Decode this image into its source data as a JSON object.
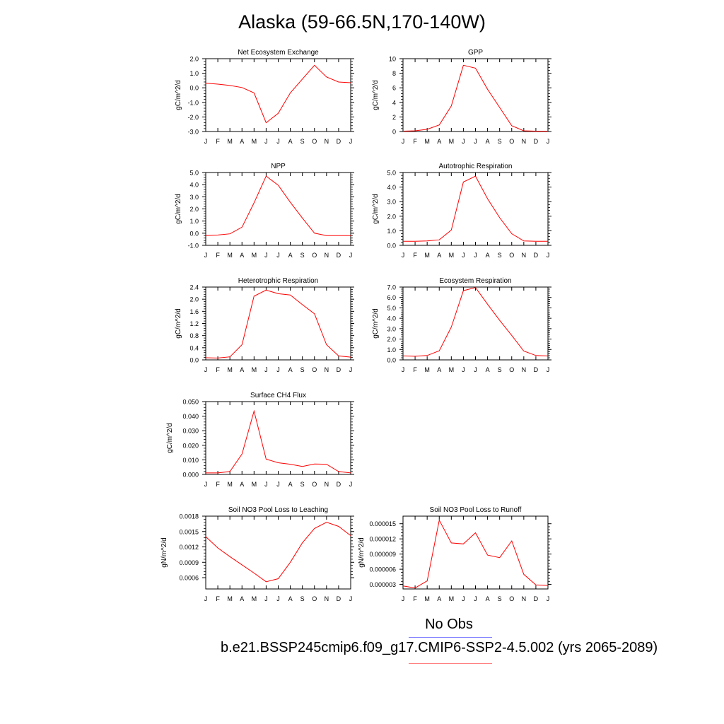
{
  "title": "Alaska (59-66.5N,170-140W)",
  "months": [
    "J",
    "F",
    "M",
    "A",
    "M",
    "J",
    "J",
    "A",
    "S",
    "O",
    "N",
    "D",
    "J"
  ],
  "legend": {
    "obs_label": "No Obs",
    "obs_color": "#8080ff",
    "case_label": "b.e21.BSSP245cmip6.f09_g17.CMIP6-SSP2-4.5.002 (yrs 2065-2089)",
    "case_color": "#ff8080"
  },
  "line_color": "#ff0000",
  "chart_data": [
    {
      "type": "line",
      "title": "Net Ecosystem Exchange",
      "ylabel": "gC/m^2/d",
      "ylim": [
        -3.0,
        2.0
      ],
      "yticks": [
        2.0,
        1.0,
        0.0,
        -1.0,
        -2.0,
        -3.0
      ],
      "ytick_labels": [
        "2.0",
        "1.0",
        "0.0",
        "-1.0",
        "-2.0",
        "-3.0"
      ],
      "values": [
        0.32,
        0.25,
        0.16,
        0.02,
        -0.35,
        -2.4,
        -1.75,
        -0.35,
        0.6,
        1.55,
        0.75,
        0.4,
        0.35
      ]
    },
    {
      "type": "line",
      "title": "GPP",
      "ylabel": "gC/m^2/d",
      "ylim": [
        0,
        10
      ],
      "yticks": [
        10,
        8,
        6,
        4,
        2,
        0
      ],
      "ytick_labels": [
        "10",
        "8",
        "6",
        "4",
        "2",
        "0"
      ],
      "values": [
        0.05,
        0.1,
        0.3,
        0.9,
        3.5,
        9.1,
        8.7,
        5.8,
        3.3,
        0.8,
        0.1,
        0.05,
        0.05
      ]
    },
    {
      "type": "line",
      "title": "NPP",
      "ylabel": "gC/m^2/d",
      "ylim": [
        -1.0,
        5.0
      ],
      "yticks": [
        5.0,
        4.0,
        3.0,
        2.0,
        1.0,
        0.0,
        -1.0
      ],
      "ytick_labels": [
        "5.0",
        "4.0",
        "3.0",
        "2.0",
        "1.0",
        "0.0",
        "-1.0"
      ],
      "values": [
        -0.2,
        -0.15,
        -0.05,
        0.5,
        2.5,
        4.7,
        3.95,
        2.55,
        1.25,
        0.0,
        -0.2,
        -0.2,
        -0.2
      ]
    },
    {
      "type": "line",
      "title": "Autotrophic Respiration",
      "ylabel": "gC/m^2/d",
      "ylim": [
        0,
        5.0
      ],
      "yticks": [
        5.0,
        4.0,
        3.0,
        2.0,
        1.0,
        0.0
      ],
      "ytick_labels": [
        "5.0",
        "4.0",
        "3.0",
        "2.0",
        "1.0",
        "0.0"
      ],
      "values": [
        0.28,
        0.28,
        0.3,
        0.38,
        1.05,
        4.35,
        4.75,
        3.2,
        1.9,
        0.8,
        0.3,
        0.28,
        0.28
      ]
    },
    {
      "type": "line",
      "title": "Heterotrophic Respiration",
      "ylabel": "gC/m^2/d",
      "ylim": [
        0,
        2.4
      ],
      "yticks": [
        2.4,
        2.0,
        1.6,
        1.2,
        0.8,
        0.4,
        0.0
      ],
      "ytick_labels": [
        "2.4",
        "2.0",
        "1.6",
        "1.2",
        "0.8",
        "0.4",
        "0.0"
      ],
      "values": [
        0.07,
        0.06,
        0.1,
        0.5,
        2.1,
        2.3,
        2.18,
        2.14,
        1.82,
        1.52,
        0.5,
        0.13,
        0.09
      ]
    },
    {
      "type": "line",
      "title": "Ecosystem Respiration",
      "ylabel": "gC/m^2/d",
      "ylim": [
        0,
        7.0
      ],
      "yticks": [
        7.0,
        6.0,
        5.0,
        4.0,
        3.0,
        2.0,
        1.0,
        0.0
      ],
      "ytick_labels": [
        "7.0",
        "6.0",
        "5.0",
        "4.0",
        "3.0",
        "2.0",
        "1.0",
        "0.0"
      ],
      "values": [
        0.38,
        0.35,
        0.42,
        0.88,
        3.15,
        6.65,
        6.95,
        5.35,
        3.8,
        2.35,
        0.85,
        0.42,
        0.38
      ]
    },
    {
      "type": "line",
      "title": "Surface CH4 Flux",
      "ylabel": "gC/m^2/d",
      "ylim": [
        0,
        0.05
      ],
      "yticks": [
        0.05,
        0.04,
        0.03,
        0.02,
        0.01,
        0.0
      ],
      "ytick_labels": [
        "0.050",
        "0.040",
        "0.030",
        "0.020",
        "0.010",
        "0.000"
      ],
      "values": [
        0.001,
        0.001,
        0.002,
        0.014,
        0.0435,
        0.0105,
        0.008,
        0.007,
        0.0055,
        0.0072,
        0.007,
        0.002,
        0.001
      ]
    },
    {
      "type": "line",
      "title": "Soil NO3 Pool Loss to Leaching",
      "ylabel": "gN/m^2/d",
      "ylim": [
        0.00038,
        0.0018
      ],
      "yticks": [
        0.0018,
        0.0015,
        0.0012,
        0.0009,
        0.0006
      ],
      "ytick_labels": [
        "0.0018",
        "0.0015",
        "0.0012",
        "0.0009",
        "0.0006"
      ],
      "values": [
        0.0014,
        0.00118,
        0.00101,
        0.00085,
        0.00069,
        0.00052,
        0.00058,
        0.0009,
        0.00128,
        0.00156,
        0.00168,
        0.0016,
        0.00142
      ]
    },
    {
      "type": "line",
      "title": "Soil NO3 Pool Loss to Runoff",
      "ylabel": "gN/m^2/d",
      "ylim": [
        2.1e-06,
        1.65e-05
      ],
      "yticks": [
        1.5e-05,
        1.2e-05,
        9e-06,
        6e-06,
        3e-06
      ],
      "ytick_labels": [
        "0.000015",
        "0.000012",
        "0.000009",
        "0.000006",
        "0.000003"
      ],
      "values": [
        2.7e-06,
        2.3e-06,
        3.7e-06,
        1.57e-05,
        1.12e-05,
        1.1e-05,
        1.32e-05,
        8.8e-06,
        8.3e-06,
        1.16e-05,
        5e-06,
        2.9e-06,
        2.8e-06
      ]
    }
  ]
}
